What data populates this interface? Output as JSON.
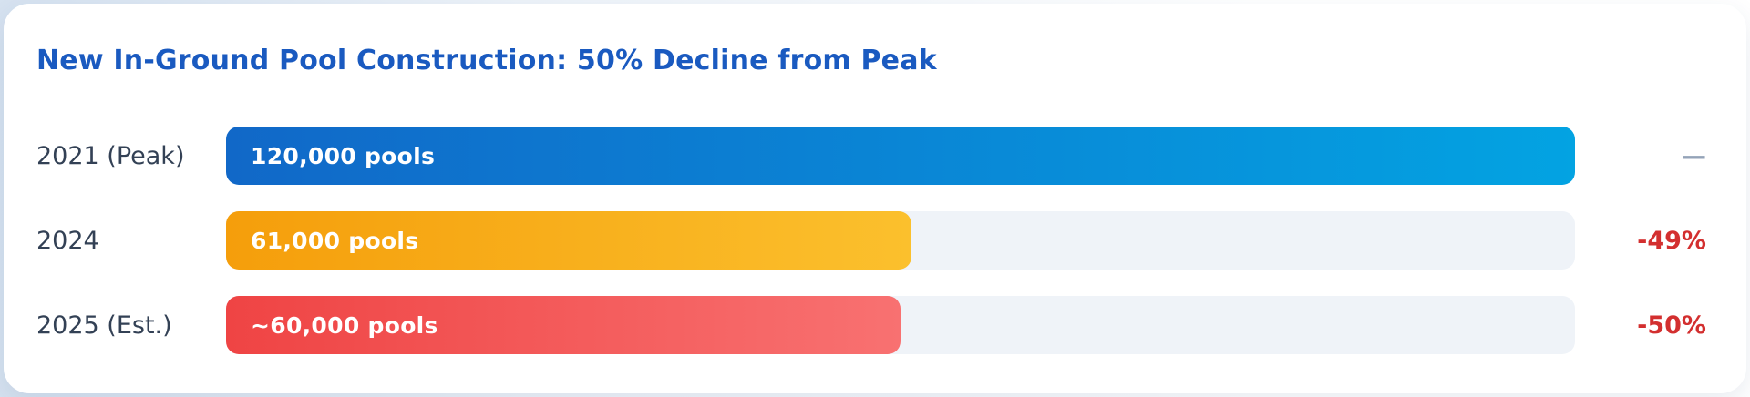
{
  "chart": {
    "title": "New In-Ground Pool Construction: 50% Decline from Peak"
  },
  "chart_data": {
    "type": "bar",
    "orientation": "horizontal",
    "title": "New In-Ground Pool Construction: 50% Decline from Peak",
    "categories": [
      "2021 (Peak)",
      "2024",
      "2025 (Est.)"
    ],
    "values": [
      120000,
      61000,
      60000
    ],
    "xlim": [
      0,
      120000
    ],
    "grid": false,
    "legend": "none",
    "bars": [
      {
        "category": "2021 (Peak)",
        "value": 120000,
        "value_label": "120,000 pools",
        "change_label": "—",
        "change_color": "#94a3b8",
        "gradient_from": "#1168c8",
        "gradient_to": "#03a3e2"
      },
      {
        "category": "2024",
        "value": 61000,
        "value_label": "61,000 pools",
        "change_label": "-49%",
        "change_color": "#d32f2f",
        "gradient_from": "#f59e0b",
        "gradient_to": "#fbc02d"
      },
      {
        "category": "2025 (Est.)",
        "value": 60000,
        "value_label": "~60,000 pools",
        "change_label": "-50%",
        "change_color": "#d32f2f",
        "gradient_from": "#ef4444",
        "gradient_to": "#f87171"
      }
    ]
  },
  "colors": {
    "title_text": "#1a5ac0",
    "category_label_text": "#334155",
    "bar_track": "#eff3f8",
    "bar_value_text": "#ffffff",
    "decline_red": "#d32f2f",
    "neutral_dash_gray": "#94a3b8",
    "card_background": "#ffffff",
    "page_background_left": "#d6e2f0",
    "page_background_right": "#ffffff"
  }
}
